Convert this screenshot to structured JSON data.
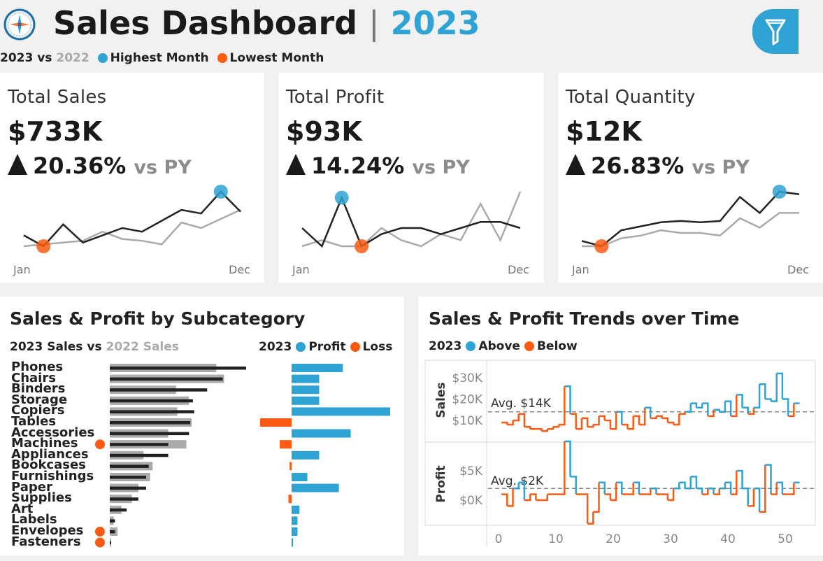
{
  "header": {
    "title": "Sales Dashboard",
    "separator": "|",
    "year": "2023",
    "legend_year": "2023",
    "legend_vs": "vs",
    "legend_prev": "2022",
    "legend_high": "Highest Month",
    "legend_low": "Lowest Month"
  },
  "colors": {
    "blue": "#2fa3d3",
    "orange": "#fc5a13",
    "dark": "#222222",
    "gray": "#aaaaaa"
  },
  "kpis": [
    {
      "title": "Total Sales",
      "value": "$733K",
      "change": "20.36%",
      "vs": "vs PY",
      "start": "Jan",
      "end": "Dec",
      "current": [
        30,
        24,
        36,
        26,
        30,
        34,
        32,
        38,
        44,
        42,
        54,
        43
      ],
      "previous": [
        24,
        25,
        26,
        27,
        32,
        28,
        27,
        25,
        37,
        34,
        39,
        44
      ],
      "high_index": 10,
      "low_index": 1
    },
    {
      "title": "Total Profit",
      "value": "$93K",
      "change": "14.24%",
      "vs": "vs PY",
      "start": "Jan",
      "end": "Dec",
      "current": [
        8,
        5,
        13,
        5,
        7,
        8,
        8,
        7,
        8,
        9,
        9,
        8
      ],
      "previous": [
        5,
        6,
        5,
        5,
        8,
        6,
        5,
        7,
        6,
        12,
        6,
        14
      ],
      "high_index": 2,
      "low_index": 3
    },
    {
      "title": "Total Quantity",
      "value": "$12K",
      "change": "26.83%",
      "vs": "vs PY",
      "start": "Jan",
      "end": "Dec",
      "current": [
        0.82,
        0.78,
        0.9,
        0.93,
        0.96,
        0.97,
        0.96,
        0.97,
        1.15,
        1.03,
        1.19,
        1.17
      ],
      "previous": [
        0.78,
        0.78,
        0.84,
        0.86,
        0.9,
        0.88,
        0.88,
        0.86,
        0.99,
        0.92,
        1.03,
        1.03
      ],
      "high_index": 10,
      "low_index": 1
    }
  ],
  "subcategory": {
    "title": "Sales & Profit by Subcategory",
    "sales_year": "2023 Sales",
    "sales_vs": "vs",
    "sales_prev": "2022 Sales",
    "profit_year": "2023",
    "profit_label": "Profit",
    "loss_label": "Loss",
    "categories": [
      "Phones",
      "Chairs",
      "Binders",
      "Storage",
      "Copiers",
      "Tables",
      "Accessories",
      "Machines",
      "Appliances",
      "Bookcases",
      "Furnishings",
      "Paper",
      "Supplies",
      "Art",
      "Labels",
      "Envelopes",
      "Fasteners"
    ],
    "sales_2023": [
      105,
      87,
      75,
      64,
      65,
      62,
      61,
      45,
      45,
      30,
      28,
      28,
      22,
      13,
      4,
      4,
      1
    ],
    "sales_2022": [
      82,
      88,
      51,
      61,
      52,
      63,
      45,
      59,
      26,
      33,
      31,
      22,
      17,
      9,
      3,
      6,
      1
    ],
    "profit_2023": [
      13,
      7,
      7,
      7,
      25,
      -8,
      15,
      -3,
      7,
      -0.5,
      4,
      12,
      -0.8,
      2,
      1.5,
      1.5,
      0.3
    ],
    "flags": [
      "",
      "",
      "",
      "",
      "",
      "",
      "",
      "Machines",
      "",
      "",
      "",
      "",
      "",
      "",
      "",
      "Envelopes",
      "Fasteners"
    ]
  },
  "trends": {
    "title": "Sales & Profit Trends over Time",
    "legend_year": "2023",
    "legend_above": "Above",
    "legend_below": "Below",
    "sales_axis_label": "Sales",
    "profit_axis_label": "Profit",
    "sales_ticks": [
      "$30K",
      "$20K",
      "$10K"
    ],
    "profit_ticks": [
      "$5K",
      "$0K"
    ],
    "sales_avg_label": "Avg. $14K",
    "profit_avg_label": "Avg. $2K",
    "x_ticks": [
      "0",
      "10",
      "20",
      "30",
      "40",
      "50"
    ],
    "sales_avg": 14,
    "profit_avg": 2,
    "weeks": [
      1,
      2,
      3,
      4,
      5,
      6,
      7,
      8,
      9,
      10,
      11,
      12,
      13,
      14,
      15,
      16,
      17,
      18,
      19,
      20,
      21,
      22,
      23,
      24,
      25,
      26,
      27,
      28,
      29,
      30,
      31,
      32,
      33,
      34,
      35,
      36,
      37,
      38,
      39,
      40,
      41,
      42,
      43,
      44,
      45,
      46,
      47,
      48,
      49,
      50,
      51,
      52
    ],
    "sales": [
      9,
      8,
      10,
      13,
      7,
      6,
      6,
      5,
      6,
      7,
      8,
      26,
      13,
      6,
      11,
      7,
      8,
      12,
      10,
      6,
      14,
      8,
      6,
      12,
      8,
      16,
      11,
      12,
      11,
      9,
      8,
      13,
      14,
      18,
      16,
      18,
      12,
      15,
      14,
      19,
      12,
      22,
      16,
      13,
      16,
      27,
      20,
      19,
      32,
      20,
      12,
      18
    ],
    "profit": [
      1,
      -1,
      2,
      3,
      0,
      1,
      0,
      0,
      1,
      1,
      1,
      10,
      4,
      1,
      1,
      -4,
      -2,
      3,
      1,
      0,
      3,
      1,
      1,
      3,
      1,
      1,
      2,
      1,
      1,
      0,
      2,
      3,
      2,
      4,
      2,
      1,
      2,
      1,
      2,
      3,
      1,
      5,
      2,
      -1,
      2,
      -2,
      6,
      1,
      3,
      1,
      1,
      3
    ]
  }
}
